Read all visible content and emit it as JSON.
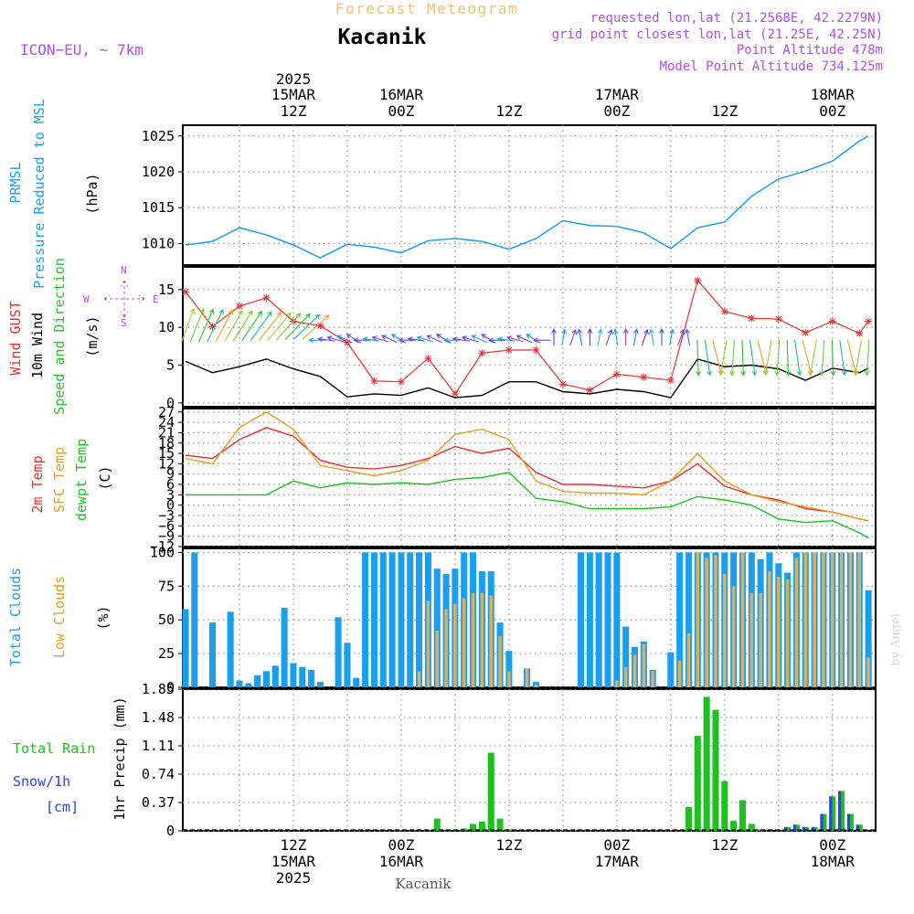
{
  "header": {
    "product_title": "Forecast Meteogram",
    "location": "Kacanik",
    "model": "ICON−EU,  ~  7km",
    "requested": "requested lon,lat (21.2568E, 42.2279N)",
    "grid_point": "grid point closest lon,lat (21.25E, 42.25N)",
    "point_altitude": "Point Altitude 478m",
    "model_altitude": "Model Point Altitude 734.125m",
    "footer_location": "Kacanik",
    "watermark": "by Angel"
  },
  "colors": {
    "title_orange": "#f0c070",
    "purple": "#b050e0",
    "pressure": "#1aa0f0",
    "gust": "#e83030",
    "wind": "#000000",
    "arrows_green": "#30c030",
    "temp": "#e83030",
    "sfc_temp": "#e0a020",
    "dewpt": "#20c020",
    "total_clouds": "#1a9ef0",
    "low_clouds": "#d8b060",
    "rain": "#20c020",
    "snow": "#3040f0"
  },
  "chart_data": [
    {
      "type": "line",
      "panel": "pressure",
      "ylabel_lines": [
        "PRMSL",
        "Pressure Reduced to MSL"
      ],
      "unit": "(hPa)",
      "yticks": [
        1010,
        1015,
        1020,
        1025
      ],
      "ylim": [
        1007,
        1026.5
      ],
      "x_hours": [
        0,
        3,
        6,
        9,
        12,
        15,
        18,
        21,
        24,
        27,
        30,
        33,
        36,
        39,
        42,
        45,
        48,
        51,
        54,
        57,
        60,
        63,
        66,
        69,
        72,
        75,
        76
      ],
      "series": [
        {
          "values": [
            1009.8,
            1010.3,
            1012.2,
            1011.2,
            1009.8,
            1008.0,
            1009.9,
            1009.5,
            1008.7,
            1010.4,
            1010.7,
            1010.3,
            1009.2,
            1010.7,
            1013.2,
            1012.5,
            1012.4,
            1011.5,
            1009.3,
            1012.2,
            1013.0,
            1016.6,
            1019.0,
            1020.1,
            1021.5,
            1024.3,
            1025.0
          ]
        }
      ],
      "grid": true
    },
    {
      "type": "line",
      "panel": "wind",
      "ylabel_lines": [
        "Wind GUST",
        "10m Wind",
        "Speed and Direction"
      ],
      "unit": "(m/s)",
      "yticks": [
        0,
        5,
        10,
        15
      ],
      "ylim": [
        -0.5,
        18
      ],
      "x_hours": [
        0,
        3,
        6,
        9,
        12,
        15,
        18,
        21,
        24,
        27,
        30,
        33,
        36,
        39,
        42,
        45,
        48,
        51,
        54,
        57,
        60,
        63,
        66,
        69,
        72,
        75,
        76
      ],
      "series": [
        {
          "name": "Wind GUST",
          "values": [
            14.7,
            10.1,
            12.8,
            13.9,
            10.8,
            10.2,
            8.0,
            2.9,
            2.8,
            5.9,
            1.2,
            6.6,
            7.0,
            7.0,
            2.5,
            1.7,
            3.8,
            3.4,
            3.0,
            16.2,
            12.1,
            11.2,
            11.1,
            9.3,
            10.8,
            9.2,
            10.8
          ]
        },
        {
          "name": "10m Wind",
          "values": [
            5.5,
            4.0,
            4.8,
            5.8,
            4.5,
            3.5,
            0.8,
            1.2,
            1.0,
            2.0,
            0.7,
            1.0,
            2.8,
            2.8,
            1.5,
            1.2,
            1.8,
            1.5,
            0.7,
            5.8,
            4.8,
            5.0,
            4.5,
            3.0,
            4.6,
            4.0,
            4.6
          ]
        }
      ],
      "arrow_colors_by_segment": [
        "green",
        "purple",
        "blue",
        "purple",
        "green"
      ],
      "grid": true
    },
    {
      "type": "line",
      "panel": "temperature",
      "ylabel_lines": [
        "2m Temp",
        "SFC Temp",
        "dewpt Temp"
      ],
      "unit": "(C)",
      "yticks": [
        -12,
        -9,
        -6,
        -3,
        0,
        3,
        6,
        9,
        12,
        15,
        18,
        21,
        24,
        27
      ],
      "ylim": [
        -12,
        28
      ],
      "x_hours": [
        0,
        3,
        6,
        9,
        12,
        15,
        18,
        21,
        24,
        27,
        30,
        33,
        36,
        39,
        42,
        45,
        48,
        51,
        54,
        57,
        60,
        63,
        66,
        69,
        72,
        75,
        76
      ],
      "series": [
        {
          "name": "2m Temp",
          "values": [
            14.5,
            13.5,
            19.0,
            22.5,
            20.0,
            13.0,
            11.0,
            10.5,
            11.5,
            13.5,
            17.0,
            15.0,
            16.5,
            9.5,
            6.0,
            6.0,
            5.5,
            5.0,
            7.0,
            12.0,
            5.5,
            3.0,
            1.5,
            -1.0,
            -2.0,
            -4.0,
            -4.5
          ]
        },
        {
          "name": "SFC Temp",
          "values": [
            13.5,
            12.0,
            22.5,
            27.0,
            22.0,
            11.5,
            10.0,
            8.5,
            10.0,
            13.0,
            20.5,
            22.0,
            19.0,
            7.0,
            4.0,
            3.5,
            3.5,
            3.0,
            7.0,
            15.0,
            7.0,
            3.0,
            1.0,
            -0.5,
            -2.0,
            -4.0,
            -4.5
          ]
        },
        {
          "name": "dewpt Temp",
          "values": [
            3.0,
            3.0,
            3.0,
            3.0,
            7.0,
            5.0,
            6.5,
            6.0,
            6.5,
            6.0,
            7.5,
            8.0,
            9.5,
            2.0,
            1.0,
            -1.0,
            -1.0,
            -1.0,
            -0.5,
            2.5,
            1.5,
            0.0,
            -4.0,
            -5.0,
            -4.5,
            -8.0,
            -9.5
          ]
        }
      ],
      "grid": true
    },
    {
      "type": "bar",
      "panel": "clouds",
      "ylabel_lines": [
        "Total Clouds",
        "Low Clouds"
      ],
      "unit": "(%)",
      "yticks": [
        0,
        25,
        50,
        75,
        100
      ],
      "ylim": [
        0,
        103
      ],
      "x_hours": [
        0,
        1,
        2,
        3,
        4,
        5,
        6,
        7,
        8,
        9,
        10,
        11,
        12,
        13,
        14,
        15,
        16,
        17,
        18,
        19,
        20,
        21,
        22,
        23,
        24,
        25,
        26,
        27,
        28,
        29,
        30,
        31,
        32,
        33,
        34,
        35,
        36,
        37,
        38,
        39,
        40,
        41,
        42,
        43,
        44,
        45,
        46,
        47,
        48,
        49,
        50,
        51,
        52,
        53,
        54,
        55,
        56,
        57,
        58,
        59,
        60,
        61,
        62,
        63,
        64,
        65,
        66,
        67,
        68,
        69,
        70,
        71,
        72,
        73,
        74,
        75,
        76
      ],
      "series": [
        {
          "name": "Total Clouds",
          "values": [
            58,
            100,
            0,
            48,
            0,
            56,
            5,
            3,
            9,
            12,
            16,
            59,
            18,
            15,
            13,
            4,
            0,
            52,
            33,
            7,
            100,
            100,
            100,
            100,
            100,
            100,
            100,
            100,
            88,
            84,
            88,
            100,
            100,
            86,
            86,
            48,
            27,
            0,
            14,
            4,
            0,
            0,
            0,
            0,
            100,
            100,
            100,
            100,
            100,
            45,
            30,
            34,
            13,
            0,
            26,
            100,
            100,
            100,
            100,
            100,
            100,
            100,
            100,
            100,
            95,
            100,
            92,
            85,
            100,
            100,
            100,
            100,
            100,
            100,
            100,
            100,
            72
          ]
        },
        {
          "name": "Low Clouds",
          "values": [
            0,
            0,
            0,
            0,
            0,
            0,
            0,
            0,
            0,
            0,
            0,
            0,
            0,
            0,
            0,
            0,
            0,
            0,
            0,
            0,
            0,
            0,
            0,
            0,
            0,
            0,
            12,
            64,
            42,
            58,
            62,
            66,
            70,
            70,
            68,
            38,
            12,
            0,
            14,
            2,
            0,
            0,
            0,
            0,
            0,
            0,
            0,
            0,
            5,
            15,
            24,
            32,
            12,
            0,
            0,
            20,
            40,
            100,
            96,
            98,
            84,
            75,
            100,
            70,
            70,
            86,
            82,
            80,
            96,
            100,
            100,
            100,
            100,
            100,
            100,
            100,
            22
          ]
        }
      ],
      "grid": true
    },
    {
      "type": "bar",
      "panel": "precip",
      "ylabel_lines": [
        "Total  Rain",
        "Snow/1h",
        "[cm]"
      ],
      "unit": "1hr Precip (mm)",
      "yticks": [
        0,
        0.37,
        0.74,
        1.11,
        1.48,
        1.85
      ],
      "ytick_labels": [
        "0",
        "0.37",
        "0.74",
        "1.11",
        "1.48",
        "1.85"
      ],
      "ylim": [
        0,
        1.85
      ],
      "x_hours": [
        28,
        31,
        32,
        33,
        34,
        35,
        36,
        37,
        56,
        57,
        58,
        59,
        60,
        61,
        62,
        63,
        64,
        65,
        67,
        68,
        69,
        70,
        71,
        72,
        73,
        74,
        75,
        76
      ],
      "series": [
        {
          "name": "Total Rain",
          "values": [
            0.16,
            0.03,
            0.09,
            0.12,
            1.02,
            0.16,
            0.02,
            0.0,
            0.31,
            1.24,
            1.75,
            1.58,
            0.65,
            0.13,
            0.4,
            0.09,
            0.02,
            0.0,
            0.05,
            0.08,
            0.05,
            0.05,
            0.22,
            0.45,
            0.52,
            0.22,
            0.08,
            0.0
          ]
        },
        {
          "name": "Snow/1h",
          "values": [
            0,
            0,
            0,
            0,
            0,
            0,
            0,
            0,
            0,
            0,
            0,
            0,
            0,
            0,
            0,
            0,
            0,
            0,
            0.05,
            0.08,
            0.05,
            0.05,
            0.22,
            0.45,
            0.52,
            0.22,
            0.08,
            0
          ]
        }
      ],
      "grid": true
    }
  ],
  "time_axis": {
    "year": "2025",
    "top_ticks": [
      {
        "hour": 12,
        "day": "15MAR",
        "time": "12Z",
        "year": "2025"
      },
      {
        "hour": 24,
        "day": "16MAR",
        "time": "00Z",
        "year": ""
      },
      {
        "hour": 36,
        "day": "",
        "time": "12Z",
        "year": ""
      },
      {
        "hour": 48,
        "day": "17MAR",
        "time": "00Z",
        "year": ""
      },
      {
        "hour": 60,
        "day": "",
        "time": "12Z",
        "year": ""
      },
      {
        "hour": 72,
        "day": "18MAR",
        "time": "00Z",
        "year": ""
      }
    ],
    "bottom_ticks": [
      {
        "hour": 12,
        "time": "12Z",
        "day": "15MAR",
        "year": "2025"
      },
      {
        "hour": 24,
        "time": "00Z",
        "day": "16MAR",
        "year": ""
      },
      {
        "hour": 36,
        "time": "12Z",
        "day": "",
        "year": ""
      },
      {
        "hour": 48,
        "time": "00Z",
        "day": "17MAR",
        "year": ""
      },
      {
        "hour": 60,
        "time": "12Z",
        "day": "",
        "year": ""
      },
      {
        "hour": 72,
        "time": "00Z",
        "day": "18MAR",
        "year": ""
      }
    ]
  },
  "compass": {
    "n": "N",
    "s": "S",
    "e": "E",
    "w": "W"
  }
}
